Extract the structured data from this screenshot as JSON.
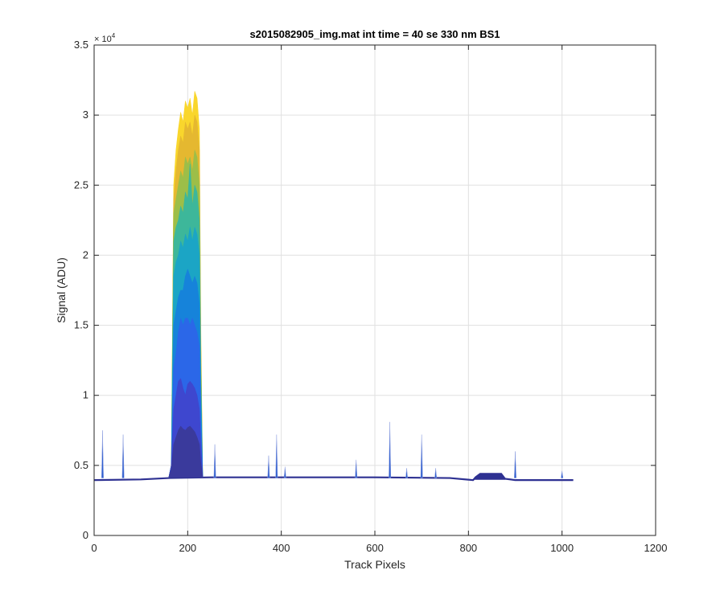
{
  "chart_data": {
    "type": "area",
    "title": "s2015082905_img.mat int time = 40 se  330 nm BS1",
    "xlabel": "Track Pixels",
    "ylabel": "Signal (ADU)",
    "y_exponent_label": "× 10",
    "y_exponent_power": "4",
    "xlim": [
      0,
      1200
    ],
    "ylim": [
      0,
      35000
    ],
    "x_ticks": [
      0,
      200,
      400,
      600,
      800,
      1000,
      1200
    ],
    "y_ticks": [
      0,
      5000,
      10000,
      15000,
      20000,
      25000,
      30000,
      35000
    ],
    "x_tick_labels": [
      "0",
      "200",
      "400",
      "600",
      "800",
      "1000",
      "1200"
    ],
    "y_tick_labels": [
      "0",
      "0.5",
      "1",
      "1.5",
      "2",
      "2.5",
      "3",
      "3.5"
    ],
    "grid": true,
    "baseline": {
      "x_range": [
        0,
        1024
      ],
      "value": 4000,
      "points": [
        {
          "x": 0,
          "y": 3950
        },
        {
          "x": 100,
          "y": 4000
        },
        {
          "x": 160,
          "y": 4100
        },
        {
          "x": 250,
          "y": 4150
        },
        {
          "x": 400,
          "y": 4150
        },
        {
          "x": 600,
          "y": 4150
        },
        {
          "x": 760,
          "y": 4100
        },
        {
          "x": 800,
          "y": 3980
        },
        {
          "x": 810,
          "y": 3950
        },
        {
          "x": 815,
          "y": 4150
        },
        {
          "x": 825,
          "y": 4400
        },
        {
          "x": 870,
          "y": 4400
        },
        {
          "x": 878,
          "y": 4050
        },
        {
          "x": 900,
          "y": 3950
        },
        {
          "x": 1024,
          "y": 3950
        }
      ]
    },
    "peak_region": {
      "x_range": [
        160,
        232
      ],
      "series": [
        {
          "color": "#F9D62C",
          "values": [
            [
              160,
              4200
            ],
            [
              165,
              5000
            ],
            [
              170,
              25000
            ],
            [
              175,
              27500
            ],
            [
              180,
              29000
            ],
            [
              185,
              30200
            ],
            [
              190,
              29500
            ],
            [
              195,
              31000
            ],
            [
              200,
              30500
            ],
            [
              205,
              31200
            ],
            [
              210,
              30000
            ],
            [
              215,
              31700
            ],
            [
              220,
              31200
            ],
            [
              225,
              29000
            ],
            [
              228,
              15000
            ],
            [
              232,
              4200
            ]
          ]
        },
        {
          "color": "#E5B830",
          "values": [
            [
              160,
              4200
            ],
            [
              165,
              5000
            ],
            [
              170,
              24000
            ],
            [
              175,
              26000
            ],
            [
              180,
              27500
            ],
            [
              185,
              28500
            ],
            [
              190,
              28000
            ],
            [
              195,
              29500
            ],
            [
              200,
              29000
            ],
            [
              205,
              29500
            ],
            [
              210,
              28500
            ],
            [
              215,
              30000
            ],
            [
              220,
              29500
            ],
            [
              225,
              27500
            ],
            [
              228,
              14000
            ],
            [
              232,
              4200
            ]
          ]
        },
        {
          "color": "#9DBE48",
          "values": [
            [
              160,
              4200
            ],
            [
              165,
              5000
            ],
            [
              170,
              23000
            ],
            [
              175,
              24000
            ],
            [
              180,
              25000
            ],
            [
              185,
              26000
            ],
            [
              190,
              25500
            ],
            [
              195,
              27000
            ],
            [
              200,
              26500
            ],
            [
              205,
              27000
            ],
            [
              210,
              26000
            ],
            [
              215,
              27500
            ],
            [
              220,
              27000
            ],
            [
              225,
              25000
            ],
            [
              228,
              13000
            ],
            [
              232,
              4200
            ]
          ]
        },
        {
          "color": "#3DB79A",
          "values": [
            [
              160,
              4200
            ],
            [
              165,
              5000
            ],
            [
              170,
              21000
            ],
            [
              175,
              22000
            ],
            [
              180,
              22500
            ],
            [
              185,
              23500
            ],
            [
              190,
              23000
            ],
            [
              195,
              24500
            ],
            [
              200,
              24000
            ],
            [
              205,
              26500
            ],
            [
              210,
              23500
            ],
            [
              215,
              25000
            ],
            [
              220,
              24500
            ],
            [
              225,
              22500
            ],
            [
              228,
              12000
            ],
            [
              232,
              4200
            ]
          ]
        },
        {
          "color": "#1BA5C5",
          "values": [
            [
              160,
              4200
            ],
            [
              165,
              5000
            ],
            [
              170,
              18500
            ],
            [
              175,
              19500
            ],
            [
              180,
              20000
            ],
            [
              185,
              21000
            ],
            [
              190,
              20500
            ],
            [
              195,
              21500
            ],
            [
              200,
              21000
            ],
            [
              205,
              22000
            ],
            [
              210,
              21000
            ],
            [
              215,
              22000
            ],
            [
              220,
              21500
            ],
            [
              225,
              20000
            ],
            [
              228,
              11000
            ],
            [
              232,
              4200
            ]
          ]
        },
        {
          "color": "#1683DA",
          "values": [
            [
              160,
              4200
            ],
            [
              165,
              5000
            ],
            [
              170,
              15000
            ],
            [
              175,
              16000
            ],
            [
              180,
              17000
            ],
            [
              185,
              17500
            ],
            [
              190,
              17500
            ],
            [
              195,
              18500
            ],
            [
              200,
              19000
            ],
            [
              205,
              18500
            ],
            [
              210,
              18000
            ],
            [
              215,
              18500
            ],
            [
              220,
              18000
            ],
            [
              225,
              16500
            ],
            [
              228,
              9500
            ],
            [
              232,
              4200
            ]
          ]
        },
        {
          "color": "#2B67E8",
          "values": [
            [
              160,
              4200
            ],
            [
              165,
              5000
            ],
            [
              170,
              12000
            ],
            [
              175,
              13000
            ],
            [
              180,
              14500
            ],
            [
              185,
              15500
            ],
            [
              190,
              15000
            ],
            [
              195,
              15500
            ],
            [
              200,
              15500
            ],
            [
              205,
              15000
            ],
            [
              210,
              15500
            ],
            [
              215,
              15000
            ],
            [
              220,
              14500
            ],
            [
              225,
              13500
            ],
            [
              228,
              8000
            ],
            [
              232,
              4200
            ]
          ]
        },
        {
          "color": "#3E47CF",
          "values": [
            [
              160,
              4200
            ],
            [
              165,
              5000
            ],
            [
              170,
              9000
            ],
            [
              175,
              10000
            ],
            [
              180,
              11000
            ],
            [
              185,
              11200
            ],
            [
              190,
              10500
            ],
            [
              195,
              10000
            ],
            [
              200,
              10800
            ],
            [
              205,
              11000
            ],
            [
              210,
              10800
            ],
            [
              215,
              10500
            ],
            [
              220,
              10000
            ],
            [
              225,
              9000
            ],
            [
              228,
              6500
            ],
            [
              232,
              4200
            ]
          ]
        },
        {
          "color": "#3A3A9C",
          "values": [
            [
              160,
              4200
            ],
            [
              165,
              4800
            ],
            [
              170,
              6500
            ],
            [
              175,
              7000
            ],
            [
              180,
              7500
            ],
            [
              185,
              7800
            ],
            [
              190,
              7600
            ],
            [
              195,
              7500
            ],
            [
              200,
              7700
            ],
            [
              205,
              7800
            ],
            [
              210,
              7600
            ],
            [
              215,
              7400
            ],
            [
              220,
              7000
            ],
            [
              225,
              6500
            ],
            [
              228,
              5200
            ],
            [
              232,
              4200
            ]
          ]
        }
      ]
    },
    "spikes": [
      {
        "x": 18,
        "y": 7500
      },
      {
        "x": 62,
        "y": 7200
      },
      {
        "x": 258,
        "y": 6500
      },
      {
        "x": 373,
        "y": 5700
      },
      {
        "x": 390,
        "y": 7200
      },
      {
        "x": 408,
        "y": 4900
      },
      {
        "x": 560,
        "y": 5400
      },
      {
        "x": 632,
        "y": 8100
      },
      {
        "x": 668,
        "y": 4800
      },
      {
        "x": 700,
        "y": 7200
      },
      {
        "x": 730,
        "y": 4800
      },
      {
        "x": 900,
        "y": 6000
      },
      {
        "x": 1000,
        "y": 4600
      }
    ],
    "colors": {
      "baseline": "#2E3192",
      "grid": "#e0e0e0",
      "axis": "#262626"
    }
  }
}
